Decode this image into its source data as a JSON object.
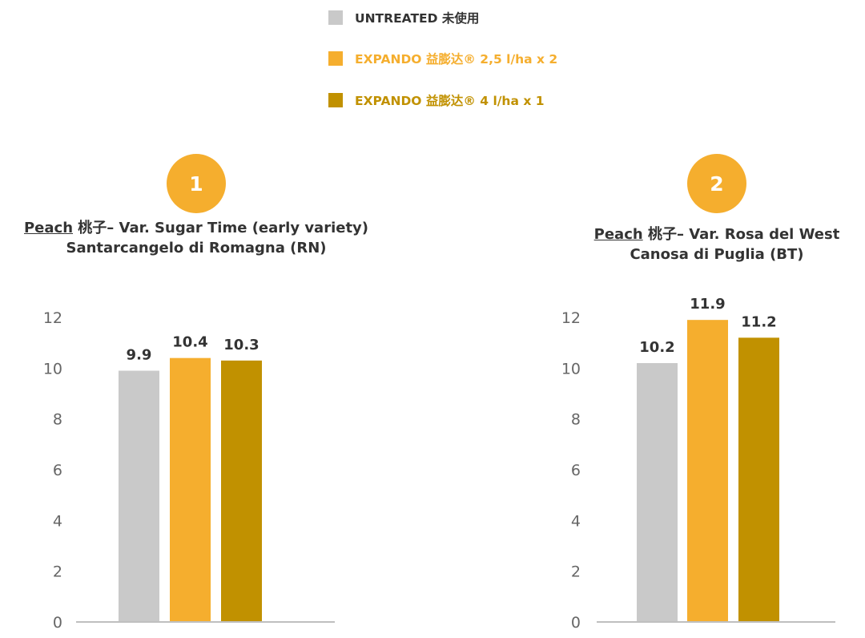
{
  "legend": [
    {
      "label": "UNTREATED 未使用",
      "color": "#C9C9C9",
      "text_color": "#333333"
    },
    {
      "label": "EXPANDO 益膨达® 2,5 l/ha x 2",
      "color": "#F5AE2E",
      "text_color": "#F5AE2E"
    },
    {
      "label": "EXPANDO 益膨达® 4 l/ha x 1",
      "color": "#C19100",
      "text_color": "#C19100"
    }
  ],
  "panels": [
    {
      "badge": "1",
      "crop": "Peach",
      "title_rest": " 桃子– Var. Sugar Time (early variety)",
      "location": "Santarcangelo di Romagna (RN)"
    },
    {
      "badge": "2",
      "crop": "Peach",
      "title_rest": " 桃子– Var. Rosa del West",
      "location": "Canosa di Puglia (BT)"
    }
  ],
  "chart_data": [
    {
      "type": "bar",
      "title": "Peach 桃子– Var. Sugar Time (early variety) Santarcangelo di Romagna (RN)",
      "categories": [
        "UNTREATED 未使用",
        "EXPANDO 益膨达® 2,5 l/ha x 2",
        "EXPANDO 益膨达® 4 l/ha x 1"
      ],
      "values": [
        9.9,
        10.4,
        10.3
      ],
      "colors": [
        "#C9C9C9",
        "#F5AE2E",
        "#C19100"
      ],
      "ylim": [
        0,
        12
      ],
      "yticks": [
        0,
        2,
        4,
        6,
        8,
        10,
        12
      ],
      "grid": false
    },
    {
      "type": "bar",
      "title": "Peach 桃子– Var. Rosa del West Canosa di Puglia (BT)",
      "categories": [
        "UNTREATED 未使用",
        "EXPANDO 益膨达® 2,5 l/ha x 2",
        "EXPANDO 益膨达® 4 l/ha x 1"
      ],
      "values": [
        10.2,
        11.9,
        11.2
      ],
      "colors": [
        "#C9C9C9",
        "#F5AE2E",
        "#C19100"
      ],
      "ylim": [
        0,
        12
      ],
      "yticks": [
        0,
        2,
        4,
        6,
        8,
        10,
        12
      ],
      "grid": false
    }
  ]
}
